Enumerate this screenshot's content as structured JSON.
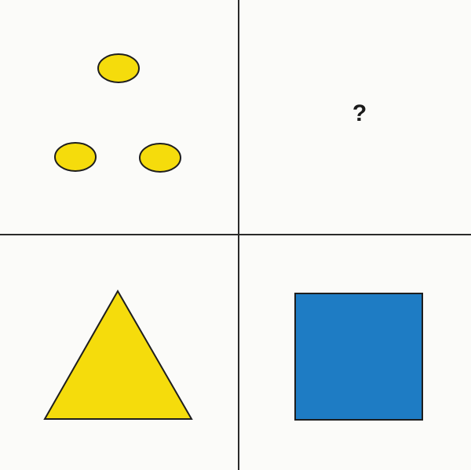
{
  "puzzle": {
    "question_mark": "?",
    "cells": [
      {
        "position": "top-left",
        "content": "three-ovals",
        "fill": "#f5dc0c",
        "stroke": "#1e1e1e"
      },
      {
        "position": "top-right",
        "content": "question-mark"
      },
      {
        "position": "bottom-left",
        "content": "triangle",
        "fill": "#f5dc0c",
        "stroke": "#1e1e1e"
      },
      {
        "position": "bottom-right",
        "content": "square",
        "fill": "#1e7cc4",
        "stroke": "#1e1e1e"
      }
    ],
    "colors": {
      "background": "#fbfbf9",
      "divider": "#2b2b2b",
      "yellow": "#f5dc0c",
      "blue": "#1e7cc4",
      "outline": "#1e1e1e"
    }
  }
}
